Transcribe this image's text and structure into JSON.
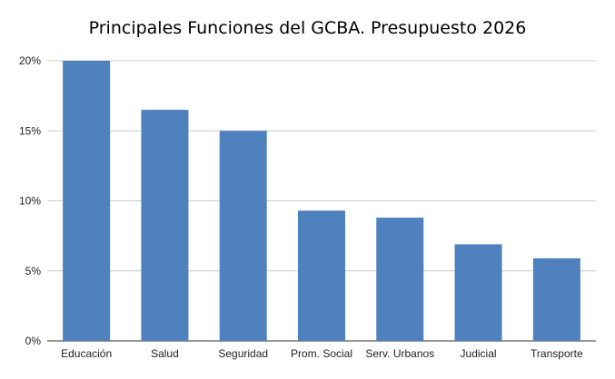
{
  "chart_data": {
    "type": "bar",
    "title": "Principales Funciones del GCBA. Presupuesto 2026",
    "xlabel": "",
    "ylabel": "",
    "categories": [
      "Educación",
      "Salud",
      "Seguridad",
      "Prom. Social",
      "Serv. Urbanos",
      "Judicial",
      "Transporte"
    ],
    "values": [
      20.0,
      16.5,
      15.0,
      9.3,
      8.8,
      6.9,
      5.9
    ],
    "value_unit": "%",
    "ylim": [
      0,
      20
    ],
    "yticks": [
      0,
      5,
      10,
      15,
      20
    ],
    "ytick_labels": [
      "0%",
      "5%",
      "10%",
      "15%",
      "20%"
    ],
    "grid": true,
    "legend": "none",
    "bar_color": "#4e81bd",
    "grid_color": "#cccccc"
  }
}
